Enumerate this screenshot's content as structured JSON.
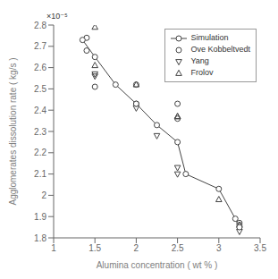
{
  "chart_data": {
    "type": "line",
    "x_label": "Alumina concentration ( wt % )",
    "y_label": "Agglomerates dissolution rate ( kg/s )",
    "annotations": [
      "×10⁻⁵"
    ],
    "series": [
      {
        "name": "Simulation",
        "type": "line",
        "color": "#444444",
        "marker": "circle",
        "line_style": "solid",
        "x": [
          1.35,
          1.5,
          1.75,
          2.0,
          2.25,
          2.5,
          2.6,
          3.0,
          3.2,
          3.25
        ],
        "values": [
          2.73e-05,
          2.65e-05,
          2.52e-05,
          2.43e-05,
          2.33e-05,
          2.25e-05,
          2.1e-05,
          2.03e-05,
          1.89e-05,
          1.85e-05
        ]
      },
      {
        "name": "Ove Kobbeltvedt",
        "type": "scatter",
        "color": "#444444",
        "marker": "circle",
        "x": [
          1.4,
          1.4,
          1.5,
          2.0,
          2.0,
          2.5,
          2.5,
          3.25,
          3.25
        ],
        "values": [
          2.74e-05,
          2.68e-05,
          2.51e-05,
          2.52e-05,
          2.43e-05,
          2.36e-05,
          2.43e-05,
          1.87e-05,
          1.86e-05
        ]
      },
      {
        "name": "Yang",
        "type": "scatter",
        "color": "#444444",
        "marker": "triangle-down",
        "x": [
          1.5,
          1.5,
          2.0,
          2.25,
          2.5,
          2.5,
          3.25
        ],
        "values": [
          2.57e-05,
          2.56e-05,
          2.41e-05,
          2.28e-05,
          2.13e-05,
          2.1e-05,
          1.83e-05
        ]
      },
      {
        "name": "Frolov",
        "type": "scatter",
        "color": "#444444",
        "marker": "triangle-up",
        "x": [
          1.5,
          1.5,
          2.0,
          2.5,
          2.5,
          3.0,
          3.25
        ],
        "values": [
          2.79e-05,
          2.61e-05,
          2.52e-05,
          2.37e-05,
          2.37e-05,
          1.98e-05,
          1.86e-05
        ]
      }
    ],
    "xlim": [
      1.0,
      3.5
    ],
    "xticks": [
      1.0,
      1.5,
      2.0,
      2.5,
      3.0,
      3.5
    ],
    "ylim": [
      1.8e-05,
      2.8e-05
    ],
    "yticks": [
      {
        "value": 1.8e-05,
        "label": "1.8"
      },
      {
        "value": 1.9e-05,
        "label": "1.9"
      },
      {
        "value": 2e-05,
        "label": "2"
      },
      {
        "value": 2.1e-05,
        "label": "2.1"
      },
      {
        "value": 2.2e-05,
        "label": "2.2"
      },
      {
        "value": 2.3e-05,
        "label": "2.3"
      },
      {
        "value": 2.4e-05,
        "label": "2.4"
      },
      {
        "value": 2.5e-05,
        "label": "2.5"
      },
      {
        "value": 2.6e-05,
        "label": "2.6"
      },
      {
        "value": 2.7e-05,
        "label": "2.7"
      },
      {
        "value": 2.8e-05,
        "label": "2.8"
      }
    ],
    "grid": false,
    "legend": "upper right"
  }
}
